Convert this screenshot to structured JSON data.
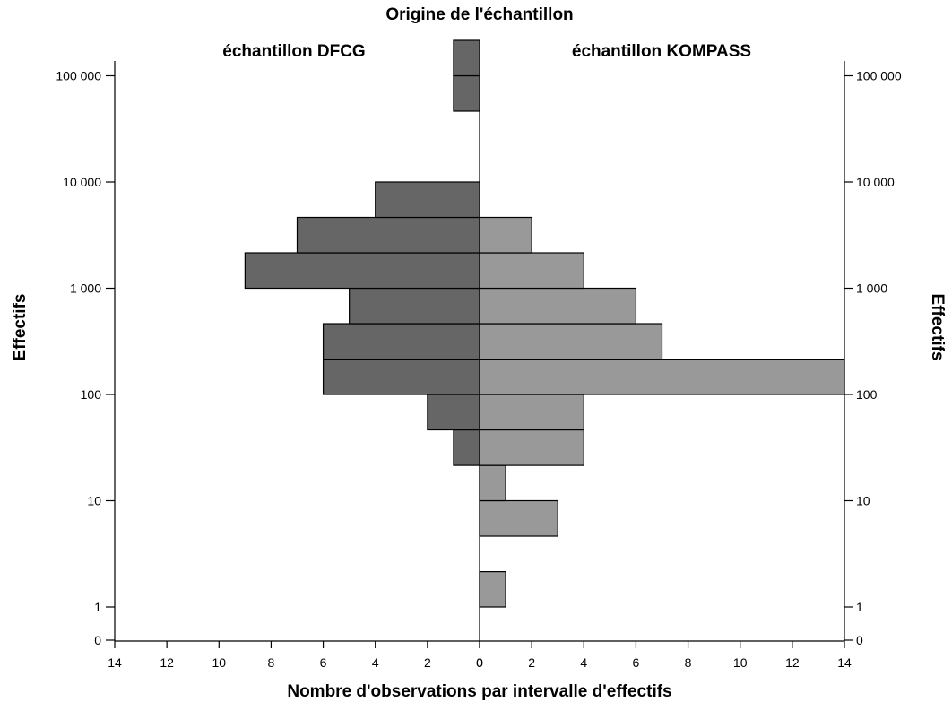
{
  "chart_data": {
    "type": "bar",
    "orientation": "horizontal-population-pyramid",
    "title": "Origine de l'échantillon",
    "xlabel": "Nombre d'observations par intervalle d'effectifs",
    "ylabel_left": "Effectifs",
    "ylabel_right": "Effectifs",
    "y_scale": "log",
    "y_ticks": [
      {
        "value": 0,
        "label": "0"
      },
      {
        "value": 1,
        "label": "1"
      },
      {
        "value": 10,
        "label": "10"
      },
      {
        "value": 100,
        "label": "100"
      },
      {
        "value": 1000,
        "label": "1 000"
      },
      {
        "value": 10000,
        "label": "10 000"
      },
      {
        "value": 100000,
        "label": "100 000"
      }
    ],
    "x_ticks_left": [
      "14",
      "12",
      "10",
      "8",
      "6",
      "4",
      "2",
      "0"
    ],
    "x_ticks_right": [
      "0",
      "2",
      "4",
      "6",
      "8",
      "10",
      "12",
      "14"
    ],
    "xlim": [
      0,
      14
    ],
    "panels": [
      {
        "name": "échantillon DFCG",
        "side": "left",
        "color": "#666666",
        "bins": [
          {
            "lower": 21.5,
            "upper": 46.4,
            "count": 1
          },
          {
            "lower": 46.4,
            "upper": 100,
            "count": 2
          },
          {
            "lower": 100,
            "upper": 215,
            "count": 6
          },
          {
            "lower": 215,
            "upper": 464,
            "count": 6
          },
          {
            "lower": 464,
            "upper": 1000,
            "count": 5
          },
          {
            "lower": 1000,
            "upper": 2154,
            "count": 9
          },
          {
            "lower": 2154,
            "upper": 4642,
            "count": 7
          },
          {
            "lower": 4642,
            "upper": 10000,
            "count": 4
          },
          {
            "lower": 46416,
            "upper": 100000,
            "count": 1
          },
          {
            "lower": 100000,
            "upper": 215443,
            "count": 1
          }
        ]
      },
      {
        "name": "échantillon KOMPASS",
        "side": "right",
        "color": "#999999",
        "bins": [
          {
            "lower": 1,
            "upper": 2.15,
            "count": 1
          },
          {
            "lower": 2.15,
            "upper": 4.64,
            "count": 0
          },
          {
            "lower": 4.64,
            "upper": 10,
            "count": 3
          },
          {
            "lower": 10,
            "upper": 21.5,
            "count": 1
          },
          {
            "lower": 21.5,
            "upper": 46.4,
            "count": 4
          },
          {
            "lower": 46.4,
            "upper": 100,
            "count": 4
          },
          {
            "lower": 100,
            "upper": 215,
            "count": 14
          },
          {
            "lower": 215,
            "upper": 464,
            "count": 7
          },
          {
            "lower": 464,
            "upper": 1000,
            "count": 6
          },
          {
            "lower": 1000,
            "upper": 2154,
            "count": 4
          },
          {
            "lower": 2154,
            "upper": 4642,
            "count": 2
          }
        ]
      }
    ]
  }
}
